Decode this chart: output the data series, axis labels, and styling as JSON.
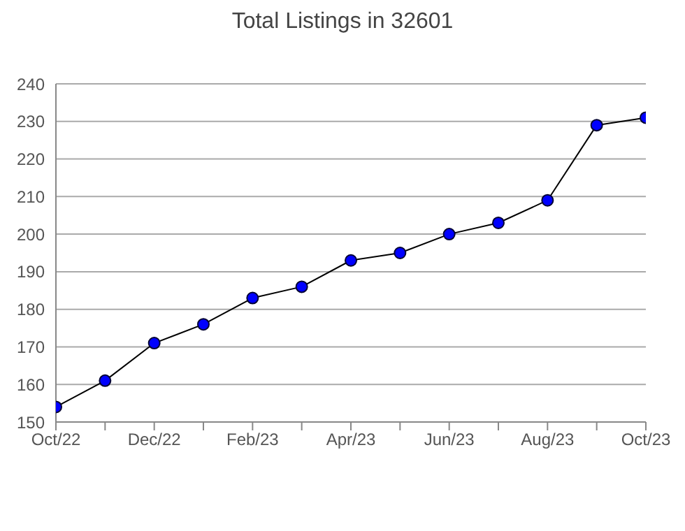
{
  "chart_data": {
    "type": "line",
    "title": "Total Listings in 32601",
    "categories": [
      "Oct/22",
      null,
      "Dec/22",
      null,
      "Feb/23",
      null,
      "Apr/23",
      null,
      "Jun/23",
      null,
      "Aug/23",
      null,
      "Oct/23"
    ],
    "series": [
      {
        "color": "#0000ff",
        "values": [
          154,
          161,
          171,
          176,
          183,
          186,
          193,
          195,
          200,
          203,
          209,
          229,
          231
        ]
      }
    ],
    "ylim": [
      150,
      240
    ],
    "yticks": [
      150,
      160,
      170,
      180,
      190,
      200,
      210,
      220,
      230,
      240
    ],
    "grid": "y",
    "marker": "circle"
  }
}
